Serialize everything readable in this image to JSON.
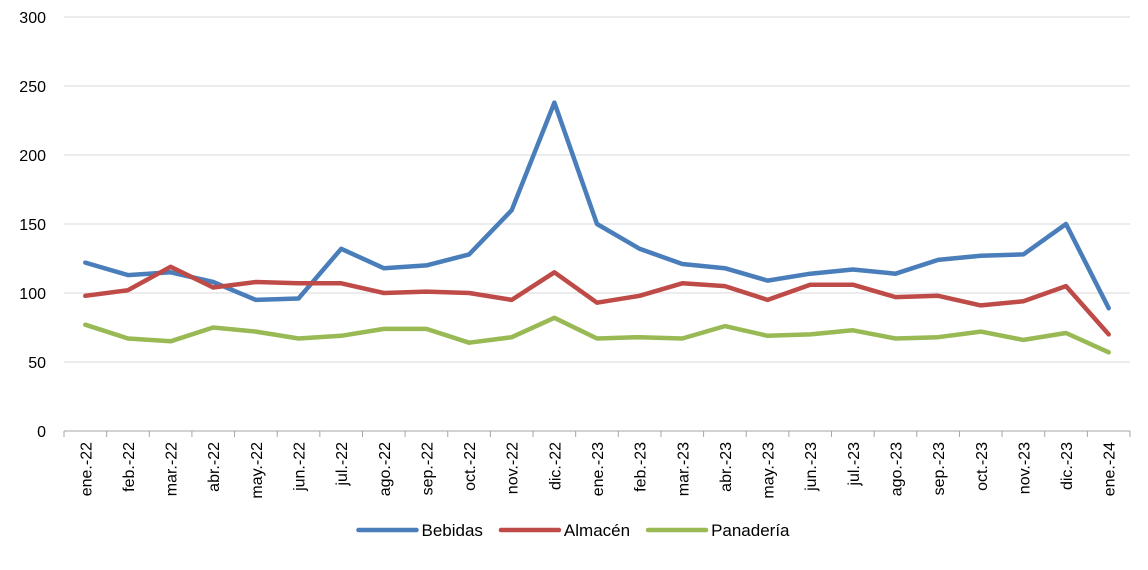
{
  "chart_data": {
    "type": "line",
    "categories": [
      "ene.-22",
      "feb.-22",
      "mar.-22",
      "abr.-22",
      "may.-22",
      "jun.-22",
      "jul.-22",
      "ago.-22",
      "sep.-22",
      "oct.-22",
      "nov.-22",
      "dic.-22",
      "ene.-23",
      "feb.-23",
      "mar.-23",
      "abr.-23",
      "may.-23",
      "jun.-23",
      "jul.-23",
      "ago.-23",
      "sep.-23",
      "oct.-23",
      "nov.-23",
      "dic.-23",
      "ene.-24"
    ],
    "series": [
      {
        "name": "Bebidas",
        "color": "#4a7ebb",
        "values": [
          122,
          113,
          115,
          108,
          95,
          96,
          132,
          118,
          120,
          128,
          160,
          238,
          150,
          132,
          121,
          118,
          109,
          114,
          117,
          114,
          124,
          127,
          128,
          150,
          89
        ]
      },
      {
        "name": "Almacén",
        "color": "#be4b48",
        "values": [
          98,
          102,
          119,
          104,
          108,
          107,
          107,
          100,
          101,
          100,
          95,
          115,
          93,
          98,
          107,
          105,
          95,
          106,
          106,
          97,
          98,
          91,
          94,
          105,
          70
        ]
      },
      {
        "name": "Panadería",
        "color": "#98b954",
        "values": [
          77,
          67,
          65,
          75,
          72,
          67,
          69,
          74,
          74,
          64,
          68,
          82,
          67,
          68,
          67,
          76,
          69,
          70,
          73,
          67,
          68,
          72,
          66,
          71,
          57
        ]
      }
    ],
    "y_ticks": [
      0,
      50,
      100,
      150,
      200,
      250,
      300
    ],
    "ylim": [
      0,
      300
    ],
    "grid": "horizontal",
    "legend_position": "bottom"
  }
}
